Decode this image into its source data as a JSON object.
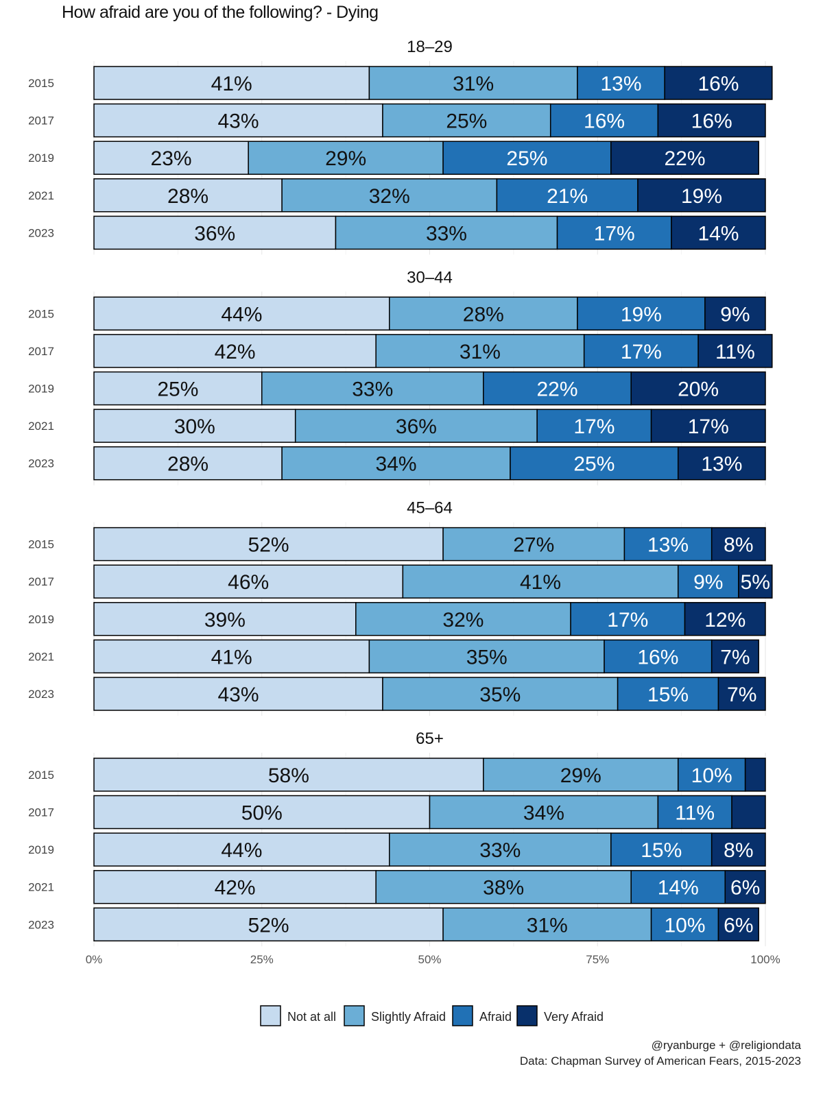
{
  "chart_data": {
    "type": "bar",
    "orientation": "horizontal-stacked-100",
    "title": "How afraid are you of the following? - Dying",
    "xlabel": "",
    "ylabel": "",
    "xlim": [
      0,
      100
    ],
    "x_ticks": [
      "0%",
      "25%",
      "50%",
      "75%",
      "100%"
    ],
    "categories": [
      "2015",
      "2017",
      "2019",
      "2021",
      "2023"
    ],
    "legend": {
      "position": "bottom",
      "entries": [
        "Not at all",
        "Slightly Afraid",
        "Afraid",
        "Very Afraid"
      ]
    },
    "colors": [
      "#c6dbef",
      "#6baed6",
      "#2171b5",
      "#08306b"
    ],
    "label_colors": [
      "#111111",
      "#111111",
      "#ffffff",
      "#ffffff"
    ],
    "panels": [
      {
        "name": "18–29",
        "rows": [
          {
            "year": "2015",
            "values": [
              41,
              31,
              13,
              16
            ],
            "labels": [
              "41%",
              "31%",
              "13%",
              "16%"
            ]
          },
          {
            "year": "2017",
            "values": [
              43,
              25,
              16,
              16
            ],
            "labels": [
              "43%",
              "25%",
              "16%",
              "16%"
            ]
          },
          {
            "year": "2019",
            "values": [
              23,
              29,
              25,
              22
            ],
            "labels": [
              "23%",
              "29%",
              "25%",
              "22%"
            ]
          },
          {
            "year": "2021",
            "values": [
              28,
              32,
              21,
              19
            ],
            "labels": [
              "28%",
              "32%",
              "21%",
              "19%"
            ]
          },
          {
            "year": "2023",
            "values": [
              36,
              33,
              17,
              14
            ],
            "labels": [
              "36%",
              "33%",
              "17%",
              "14%"
            ]
          }
        ]
      },
      {
        "name": "30–44",
        "rows": [
          {
            "year": "2015",
            "values": [
              44,
              28,
              19,
              9
            ],
            "labels": [
              "44%",
              "28%",
              "19%",
              "9%"
            ]
          },
          {
            "year": "2017",
            "values": [
              42,
              31,
              17,
              11
            ],
            "labels": [
              "42%",
              "31%",
              "17%",
              "11%"
            ]
          },
          {
            "year": "2019",
            "values": [
              25,
              33,
              22,
              20
            ],
            "labels": [
              "25%",
              "33%",
              "22%",
              "20%"
            ]
          },
          {
            "year": "2021",
            "values": [
              30,
              36,
              17,
              17
            ],
            "labels": [
              "30%",
              "36%",
              "17%",
              "17%"
            ]
          },
          {
            "year": "2023",
            "values": [
              28,
              34,
              25,
              13
            ],
            "labels": [
              "28%",
              "34%",
              "25%",
              "13%"
            ]
          }
        ]
      },
      {
        "name": "45–64",
        "rows": [
          {
            "year": "2015",
            "values": [
              52,
              27,
              13,
              8
            ],
            "labels": [
              "52%",
              "27%",
              "13%",
              "8%"
            ]
          },
          {
            "year": "2017",
            "values": [
              46,
              41,
              9,
              5
            ],
            "labels": [
              "46%",
              "41%",
              "9%",
              "5%"
            ]
          },
          {
            "year": "2019",
            "values": [
              39,
              32,
              17,
              12
            ],
            "labels": [
              "39%",
              "32%",
              "17%",
              "12%"
            ]
          },
          {
            "year": "2021",
            "values": [
              41,
              35,
              16,
              7
            ],
            "labels": [
              "41%",
              "35%",
              "16%",
              "7%"
            ]
          },
          {
            "year": "2023",
            "values": [
              43,
              35,
              15,
              7
            ],
            "labels": [
              "43%",
              "35%",
              "15%",
              "7%"
            ]
          }
        ]
      },
      {
        "name": "65+",
        "rows": [
          {
            "year": "2015",
            "values": [
              58,
              29,
              10,
              3
            ],
            "labels": [
              "58%",
              "29%",
              "10%",
              ""
            ]
          },
          {
            "year": "2017",
            "values": [
              50,
              34,
              11,
              5
            ],
            "labels": [
              "50%",
              "34%",
              "11%",
              ""
            ]
          },
          {
            "year": "2019",
            "values": [
              44,
              33,
              15,
              8
            ],
            "labels": [
              "44%",
              "33%",
              "15%",
              "8%"
            ]
          },
          {
            "year": "2021",
            "values": [
              42,
              38,
              14,
              6
            ],
            "labels": [
              "42%",
              "38%",
              "14%",
              "6%"
            ]
          },
          {
            "year": "2023",
            "values": [
              52,
              31,
              10,
              6
            ],
            "labels": [
              "52%",
              "31%",
              "10%",
              "6%"
            ]
          }
        ]
      }
    ],
    "caption": [
      "@ryanburge + @religiondata",
      "Data: Chapman Survey of American Fears, 2015-2023"
    ]
  }
}
